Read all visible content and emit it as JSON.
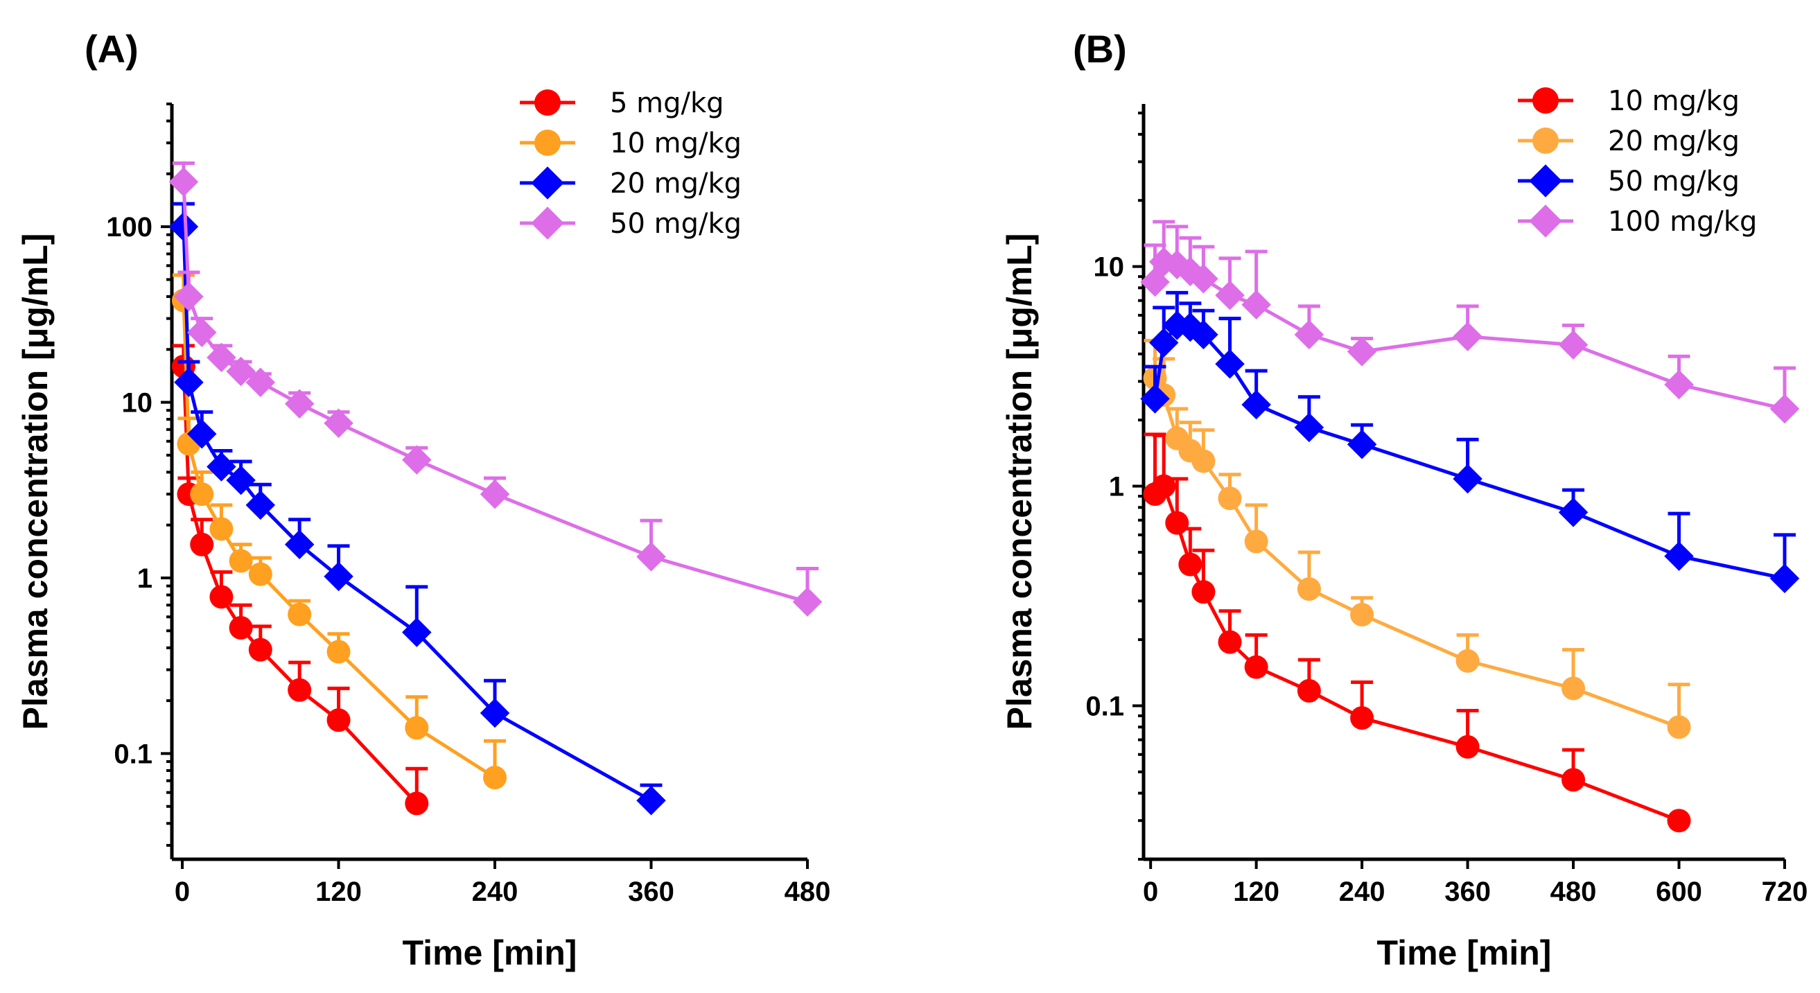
{
  "chart_data": [
    {
      "type": "line",
      "panel_label": "(A)",
      "xlabel": "Time [min]",
      "ylabel": "Plasma concentration [μg/mL]",
      "yscale": "log",
      "xlim": [
        -8,
        480
      ],
      "ylim": [
        0.025,
        500
      ],
      "xticks": [
        0,
        120,
        240,
        360,
        480
      ],
      "xtick_labels": [
        "0",
        "120",
        "240",
        "360",
        "480"
      ],
      "yticks": [
        0.1,
        1,
        10,
        100
      ],
      "ytick_labels": [
        "0.1",
        "1",
        "10",
        "100"
      ],
      "legend_position": "top-right",
      "series": [
        {
          "name": "5 mg/kg",
          "color": "#ff0000",
          "marker": "circle",
          "x": [
            1,
            5,
            15,
            30,
            45,
            60,
            90,
            120,
            180
          ],
          "y": [
            16,
            3.0,
            1.55,
            0.78,
            0.52,
            0.39,
            0.23,
            0.155,
            0.052
          ],
          "err_plus": [
            5,
            0.7,
            0.6,
            0.3,
            0.18,
            0.14,
            0.1,
            0.08,
            0.03
          ]
        },
        {
          "name": "10 mg/kg",
          "color": "#ffa020",
          "marker": "circle",
          "x": [
            1,
            5,
            15,
            30,
            45,
            60,
            90,
            120,
            180,
            240
          ],
          "y": [
            38,
            5.8,
            3.0,
            1.9,
            1.25,
            1.05,
            0.62,
            0.38,
            0.14,
            0.073
          ],
          "err_plus": [
            15,
            2.3,
            1.0,
            0.7,
            0.3,
            0.25,
            0.12,
            0.1,
            0.07,
            0.045
          ]
        },
        {
          "name": "20 mg/kg",
          "color": "#0000ff",
          "marker": "diamond",
          "x": [
            1,
            5,
            15,
            30,
            45,
            60,
            90,
            120,
            180,
            240,
            360
          ],
          "y": [
            100,
            13,
            6.6,
            4.3,
            3.6,
            2.6,
            1.55,
            1.02,
            0.49,
            0.17,
            0.054
          ],
          "err_plus": [
            35,
            4,
            2.2,
            1.0,
            1.0,
            0.8,
            0.6,
            0.5,
            0.4,
            0.09,
            0.012
          ]
        },
        {
          "name": "50 mg/kg",
          "color": "#dd6ee8",
          "marker": "diamond",
          "x": [
            1,
            5,
            15,
            30,
            45,
            60,
            90,
            120,
            180,
            240,
            360,
            480
          ],
          "y": [
            180,
            40,
            25,
            18,
            15,
            13,
            9.8,
            7.6,
            4.7,
            3.0,
            1.32,
            0.73
          ],
          "err_plus": [
            50,
            15,
            5,
            3,
            2,
            1.5,
            1.5,
            1.2,
            0.8,
            0.7,
            0.8,
            0.4
          ]
        }
      ]
    },
    {
      "type": "line",
      "panel_label": "(B)",
      "xlabel": "Time [min]",
      "ylabel": "Plasma concentration [μg/mL]",
      "yscale": "log",
      "xlim": [
        -8,
        720
      ],
      "ylim": [
        0.02,
        55
      ],
      "xticks": [
        0,
        120,
        240,
        360,
        480,
        600,
        720
      ],
      "xtick_labels": [
        "0",
        "120",
        "240",
        "360",
        "480",
        "600",
        "720"
      ],
      "yticks": [
        0.1,
        1,
        10
      ],
      "ytick_labels": [
        "0.1",
        "1",
        "10"
      ],
      "legend_position": "top-right",
      "series": [
        {
          "name": "10 mg/kg",
          "color": "#ff0000",
          "marker": "circle",
          "x": [
            5,
            15,
            30,
            45,
            60,
            90,
            120,
            180,
            240,
            360,
            480,
            600
          ],
          "y": [
            0.92,
            1.0,
            0.68,
            0.44,
            0.33,
            0.195,
            0.15,
            0.117,
            0.088,
            0.065,
            0.046,
            0.03
          ],
          "err_plus": [
            0.8,
            0.7,
            0.4,
            0.2,
            0.18,
            0.075,
            0.06,
            0.045,
            0.04,
            0.03,
            0.017,
            0.0
          ]
        },
        {
          "name": "20 mg/kg",
          "color": "#ffaa40",
          "marker": "circle",
          "x": [
            5,
            15,
            30,
            45,
            60,
            90,
            120,
            180,
            240,
            360,
            480,
            600
          ],
          "y": [
            3.1,
            2.6,
            1.65,
            1.45,
            1.3,
            0.88,
            0.56,
            0.34,
            0.26,
            0.16,
            0.12,
            0.08
          ],
          "err_plus": [
            1.5,
            1.2,
            0.6,
            0.5,
            0.5,
            0.25,
            0.26,
            0.16,
            0.05,
            0.05,
            0.06,
            0.045
          ]
        },
        {
          "name": "50 mg/kg",
          "color": "#0000ff",
          "marker": "diamond",
          "x": [
            5,
            15,
            30,
            45,
            60,
            90,
            120,
            180,
            240,
            360,
            480,
            600,
            720
          ],
          "y": [
            2.5,
            4.5,
            5.4,
            5.3,
            4.9,
            3.6,
            2.35,
            1.85,
            1.55,
            1.08,
            0.76,
            0.48,
            0.38
          ],
          "err_plus": [
            1.0,
            2.0,
            2.2,
            1.5,
            1.4,
            2.2,
            1.0,
            0.7,
            0.35,
            0.55,
            0.2,
            0.27,
            0.22
          ]
        },
        {
          "name": "100 mg/kg",
          "color": "#dd6ee8",
          "marker": "diamond",
          "x": [
            5,
            15,
            30,
            45,
            60,
            90,
            120,
            180,
            240,
            360,
            480,
            600,
            720
          ],
          "y": [
            8.5,
            10.5,
            10.2,
            9.5,
            8.8,
            7.4,
            6.7,
            4.9,
            4.1,
            4.8,
            4.4,
            2.9,
            2.25
          ],
          "err_plus": [
            4,
            5.5,
            5,
            4,
            3.5,
            3.5,
            5,
            1.7,
            0.6,
            1.8,
            1.0,
            1.0,
            1.2
          ]
        }
      ]
    }
  ]
}
